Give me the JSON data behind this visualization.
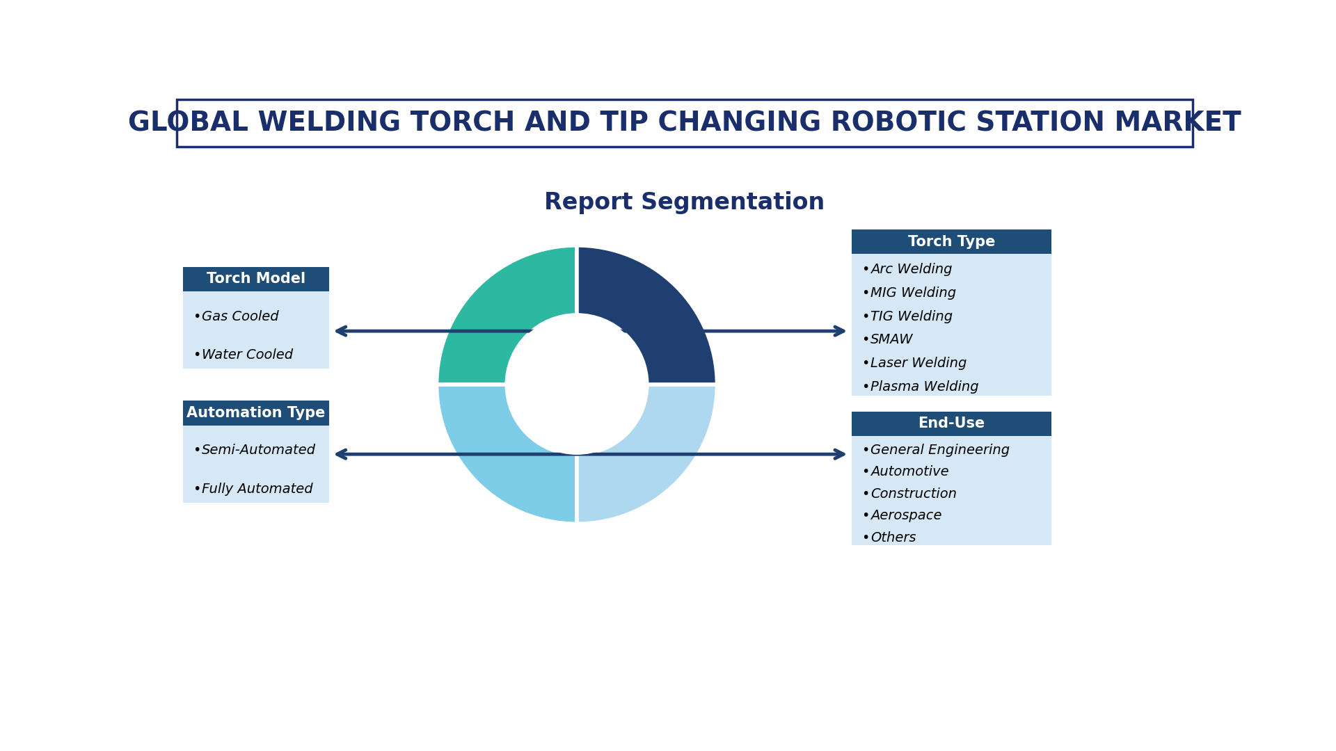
{
  "title_main": "GLOBAL WELDING TORCH AND TIP CHANGING ROBOTIC STATION MARKET",
  "subtitle": "Report Segmentation",
  "bg_color": "#ffffff",
  "title_box_edge_color": "#1a2e6b",
  "title_text_color": "#1a2e6b",
  "header_bg": "#1e4d78",
  "header_text_color": "#ffffff",
  "box_bg": "#d6e8f5",
  "donut_colors": [
    "#2db8a2",
    "#1e3f70",
    "#add8f0",
    "#7dcce8"
  ],
  "arrow_color": "#1e3f70",
  "left_boxes": [
    {
      "header": "Torch Model",
      "items": [
        "Gas Cooled",
        "Water Cooled"
      ]
    },
    {
      "header": "Automation Type",
      "items": [
        "Semi-Automated",
        "Fully Automated"
      ]
    }
  ],
  "right_boxes": [
    {
      "header": "Torch Type",
      "items": [
        "Arc Welding",
        "MIG Welding",
        "TIG Welding",
        "SMAW",
        "Laser Welding",
        "Plasma Welding"
      ]
    },
    {
      "header": "End-Use",
      "items": [
        "General Engineering",
        "Automotive",
        "Construction",
        "Aerospace",
        "Others"
      ]
    }
  ],
  "title_fontsize": 28,
  "subtitle_fontsize": 24,
  "header_fontsize": 15,
  "item_fontsize": 14
}
